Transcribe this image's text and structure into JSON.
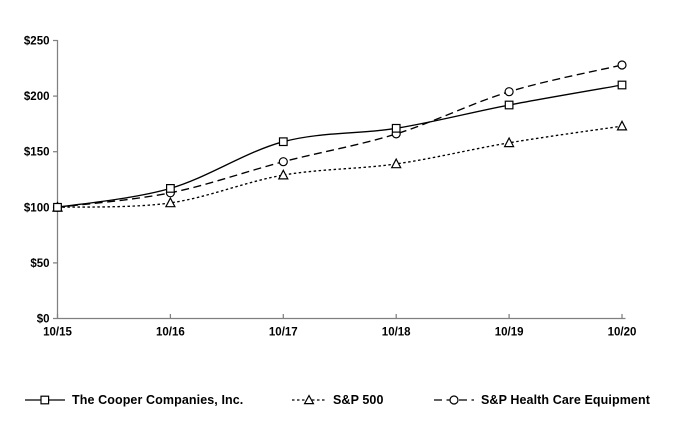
{
  "chart_data": {
    "type": "line",
    "title": "",
    "xlabel": "",
    "ylabel": "",
    "categories": [
      "10/15",
      "10/16",
      "10/17",
      "10/18",
      "10/19",
      "10/20"
    ],
    "y_tick_labels": [
      "$0",
      "$50",
      "$100",
      "$150",
      "$200",
      "$250"
    ],
    "y_tick_values": [
      0,
      50,
      100,
      150,
      200,
      250
    ],
    "ylim": [
      0,
      250
    ],
    "grid": false,
    "legend_position": "bottom",
    "series": [
      {
        "name": "The Cooper Companies, Inc.",
        "marker": "square",
        "line_style": "solid",
        "values": [
          100,
          117,
          159,
          171,
          192,
          210
        ]
      },
      {
        "name": "S&P 500",
        "marker": "triangle",
        "line_style": "dotted",
        "values": [
          100,
          104,
          129,
          139,
          158,
          173
        ]
      },
      {
        "name": "S&P Health Care Equipment",
        "marker": "circle",
        "line_style": "dashed",
        "values": [
          100,
          113,
          141,
          166,
          204,
          228
        ]
      }
    ],
    "colors": {
      "series_stroke": "#000000",
      "marker_fill": "#ffffff",
      "axis": "#808080",
      "text": "#000000",
      "background": "#ffffff"
    }
  }
}
